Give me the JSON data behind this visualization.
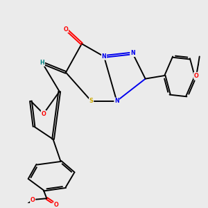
{
  "background_color": "#ebebeb",
  "atom_colors": {
    "C": "#000000",
    "N": "#0000ee",
    "O": "#ff0000",
    "S": "#ccaa00",
    "H": "#008080"
  },
  "figsize": [
    3.0,
    3.0
  ],
  "dpi": 100,
  "lw": 1.4
}
